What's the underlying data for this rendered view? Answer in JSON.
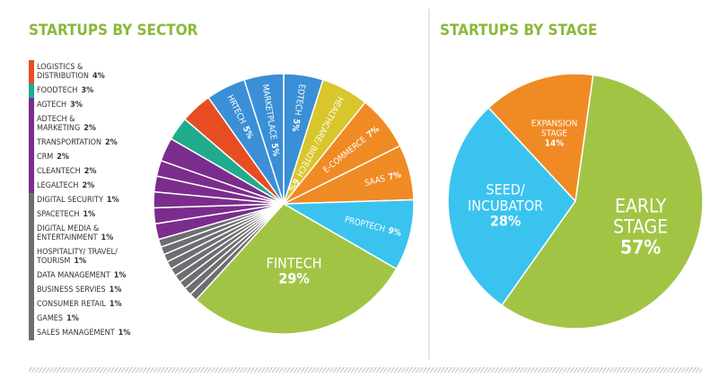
{
  "chart_data": [
    {
      "type": "pie",
      "title": "STARTUPS BY SECTOR",
      "categories": [
        "EDTECH",
        "HEALTHCARE/ BIOTECH",
        "E-COMMERCE",
        "SAAS",
        "PROPTECH",
        "FINTECH",
        "SALES MANAGEMENT",
        "GAMES",
        "CONSUMER RETAIL",
        "BUSINESS SERVIES",
        "DATA MANAGEMENT",
        "HOSPITALITY/ TRAVEL/ TOURISM",
        "DIGITAL MEDIA & ENTERTAINMENT",
        "SPACETECH",
        "DIGITAL SECURITY",
        "LEGALTECH",
        "CLEANTECH",
        "CRM",
        "TRANSPORTATION",
        "ADTECH & MARKETING",
        "AGTECH",
        "FOODTECH",
        "LOGISTICS & DISTRIBUTION",
        "HRTECH",
        "MARKETPLACE"
      ],
      "values": [
        5,
        6,
        7,
        7,
        9,
        29,
        1,
        1,
        1,
        1,
        1,
        1,
        1,
        1,
        1,
        2,
        2,
        2,
        2,
        2,
        3,
        3,
        4,
        5,
        5
      ],
      "value_labels": [
        "5%",
        "6%",
        "7%",
        "7%",
        "9%",
        "29%",
        "1%",
        "1%",
        "1%",
        "1%",
        "1%",
        "1%",
        "1%",
        "1%",
        "1%",
        "2%",
        "2%",
        "2%",
        "2%",
        "2%",
        "3%",
        "3%",
        "4%",
        "5%",
        "5%"
      ],
      "colors": [
        "#3a8fd6",
        "#d8c62c",
        "#f08a24",
        "#f08a24",
        "#3bc3ef",
        "#a2c445",
        "#6d6e71",
        "#6d6e71",
        "#6d6e71",
        "#6d6e71",
        "#6d6e71",
        "#6d6e71",
        "#6d6e71",
        "#6d6e71",
        "#6d6e71",
        "#7b2d8e",
        "#7b2d8e",
        "#7b2d8e",
        "#7b2d8e",
        "#7b2d8e",
        "#7b2d8e",
        "#1fab8c",
        "#e84c22",
        "#3a8fd6",
        "#3a8fd6"
      ]
    },
    {
      "type": "pie",
      "title": "STARTUPS BY STAGE",
      "categories": [
        "EARLY STAGE",
        "SEED/ INCUBATOR",
        "EXPANSION STAGE"
      ],
      "values": [
        57,
        28,
        14
      ],
      "value_labels": [
        "57%",
        "28%",
        "14%"
      ],
      "colors": [
        "#a2c445",
        "#3bc3ef",
        "#f08a24"
      ]
    }
  ]
}
